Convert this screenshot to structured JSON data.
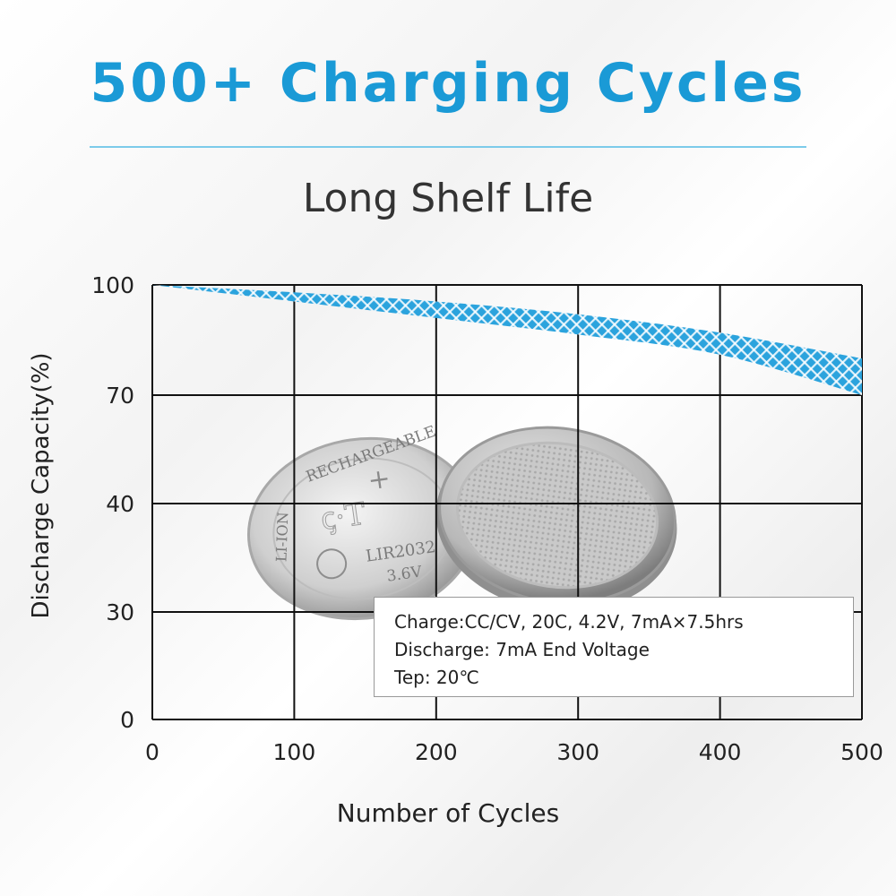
{
  "header": {
    "title": "500+ Charging Cycles",
    "subtitle": "Long Shelf Life",
    "accent_color": "#1a9ad6"
  },
  "chart_data": {
    "type": "area",
    "xlabel": "Number of Cycles",
    "ylabel": "Discharge Capacity(%)",
    "x_ticks": [
      0,
      100,
      200,
      300,
      400,
      500
    ],
    "y_tick_labels": [
      "0",
      "30",
      "40",
      "70",
      "100"
    ],
    "xlim": [
      0,
      500
    ],
    "grid": true,
    "series": [
      {
        "name": "capacity-band-upper",
        "x": [
          0,
          100,
          200,
          300,
          400,
          500
        ],
        "values": [
          100,
          98,
          95.5,
          92,
          87,
          80
        ]
      },
      {
        "name": "capacity-band-lower",
        "x": [
          0,
          100,
          200,
          300,
          400,
          500
        ],
        "values": [
          100,
          95.5,
          91,
          86.5,
          81,
          70
        ]
      }
    ],
    "band_color": "#2ba3dd",
    "legend": {
      "placement": "bottom-right",
      "lines": [
        "Charge:CC/CV, 20C, 4.2V, 7mA×7.5hrs",
        "Discharge: 7mA End Voltage",
        "Tep: 20℃"
      ]
    }
  },
  "battery": {
    "ring_text": "RECHARGEABLE",
    "side_text": "LI-ION",
    "brand": "ꞔ·T",
    "model": "LIR2032",
    "voltage": "3.6V",
    "polarity": "+"
  }
}
